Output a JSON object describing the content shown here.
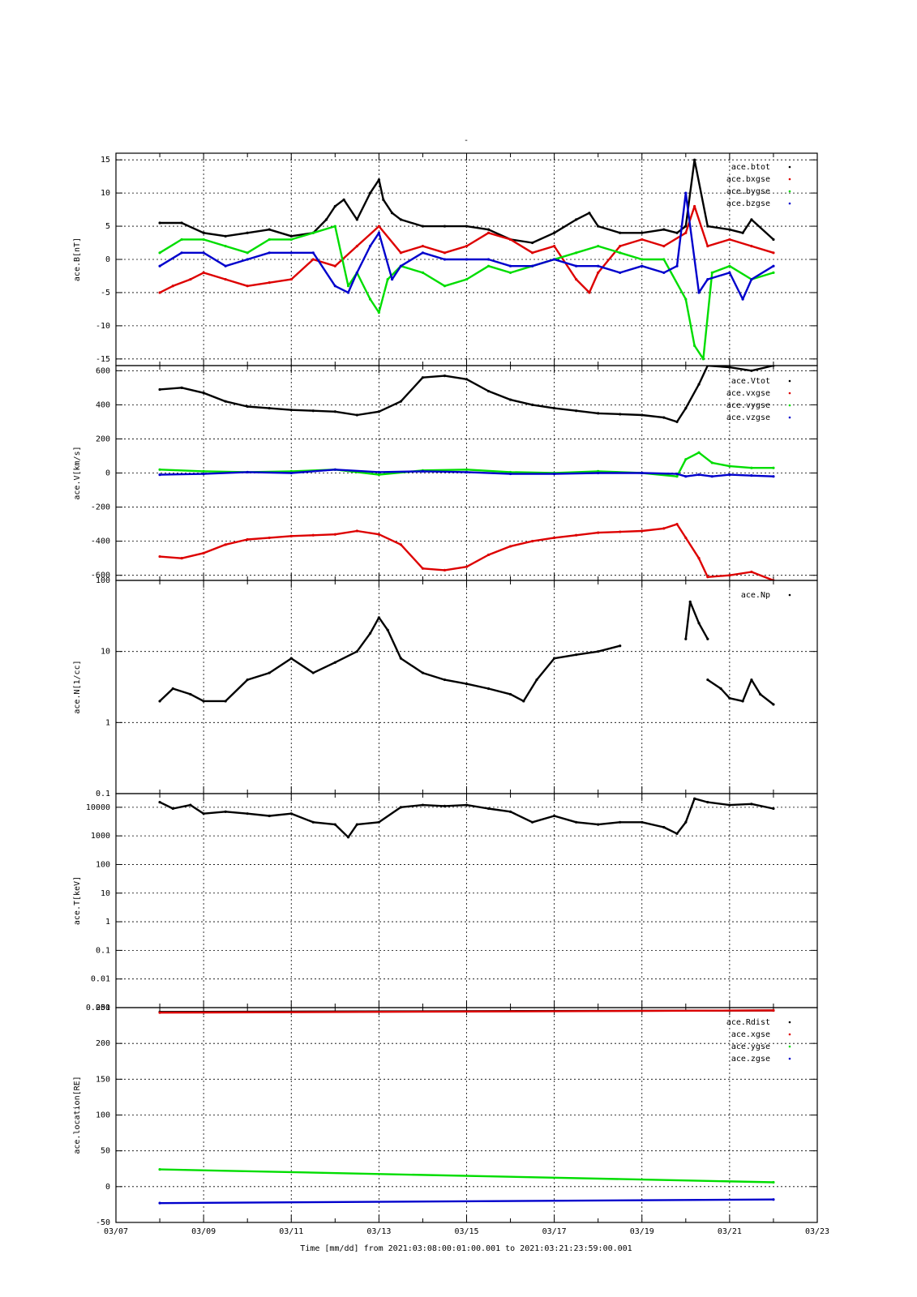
{
  "figure_title": "-",
  "xaxis": {
    "tick_labels": [
      "03/07",
      "03/09",
      "03/11",
      "03/13",
      "03/15",
      "03/17",
      "03/19",
      "03/21",
      "03/23"
    ],
    "label": "Time [mm/dd]  from 2021:03:08:00:01:00.001  to  2021:03:21:23:59:00.001"
  },
  "colors": {
    "black": "#000000",
    "red": "#dd0000",
    "green": "#00dd00",
    "blue": "#0000cc"
  },
  "chart_data": [
    {
      "type": "scatter",
      "ylabel": "ace.B[nT]",
      "ylim": [
        -16,
        16
      ],
      "yticks": [
        15,
        10,
        5,
        0,
        -5,
        -10,
        -15
      ],
      "ytick_labels": [
        "15",
        "10",
        "5",
        "0",
        "-5",
        "-10",
        "-15"
      ],
      "legend": [
        "ace.btot",
        "ace.bxgse",
        "ace.bygse",
        "ace.bzgse"
      ],
      "legend_placement": "top-right",
      "grid": true,
      "series": [
        {
          "name": "ace.btot",
          "color": "black",
          "x": [
            8,
            8.5,
            9,
            9.5,
            10,
            10.5,
            11,
            11.5,
            11.8,
            12,
            12.2,
            12.5,
            12.8,
            13,
            13.1,
            13.3,
            13.5,
            14,
            14.5,
            15,
            15.5,
            16,
            16.5,
            17,
            17.5,
            17.8,
            18,
            18.5,
            19,
            19.5,
            19.8,
            20,
            20.2,
            20.5,
            21,
            21.3,
            21.5,
            22
          ],
          "y": [
            5.5,
            5.5,
            4,
            3.5,
            4,
            4.5,
            3.5,
            4,
            6,
            8,
            9,
            6,
            10,
            12,
            9,
            7,
            6,
            5,
            5,
            5,
            4.5,
            3,
            2.5,
            4,
            6,
            7,
            5,
            4,
            4,
            4.5,
            4,
            5,
            15,
            5,
            4.5,
            4,
            6,
            3
          ]
        },
        {
          "name": "ace.bxgse",
          "color": "red",
          "x": [
            8,
            8.3,
            8.7,
            9,
            9.5,
            10,
            10.5,
            11,
            11.5,
            12,
            12.5,
            13,
            13.5,
            14,
            14.5,
            15,
            15.5,
            16,
            16.5,
            17,
            17.5,
            17.8,
            18,
            18.5,
            19,
            19.5,
            20,
            20.2,
            20.5,
            21,
            21.5,
            22
          ],
          "y": [
            -5,
            -4,
            -3,
            -2,
            -3,
            -4,
            -3.5,
            -3,
            0,
            -1,
            2,
            5,
            1,
            2,
            1,
            2,
            4,
            3,
            1,
            2,
            -3,
            -5,
            -2,
            2,
            3,
            2,
            4,
            8,
            2,
            3,
            2,
            1
          ]
        },
        {
          "name": "ace.bygse",
          "color": "green",
          "x": [
            8,
            8.5,
            9,
            9.5,
            10,
            10.5,
            11,
            11.5,
            12,
            12.3,
            12.5,
            12.8,
            13,
            13.2,
            13.5,
            14,
            14.5,
            15,
            15.5,
            16,
            16.5,
            17,
            17.5,
            18,
            18.5,
            19,
            19.5,
            20,
            20.2,
            20.4,
            20.6,
            21,
            21.5,
            22
          ],
          "y": [
            1,
            3,
            3,
            2,
            1,
            3,
            3,
            4,
            5,
            -4,
            -2,
            -6,
            -8,
            -3,
            -1,
            -2,
            -4,
            -3,
            -1,
            -2,
            -1,
            0,
            1,
            2,
            1,
            0,
            0,
            -6,
            -13,
            -15,
            -2,
            -1,
            -3,
            -2
          ]
        },
        {
          "name": "ace.bzgse",
          "color": "blue",
          "x": [
            8,
            8.5,
            9,
            9.5,
            10,
            10.5,
            11,
            11.5,
            12,
            12.3,
            12.5,
            12.8,
            13,
            13.3,
            13.5,
            14,
            14.5,
            15,
            15.5,
            16,
            16.5,
            17,
            17.5,
            18,
            18.5,
            19,
            19.5,
            19.8,
            20,
            20.3,
            20.5,
            21,
            21.3,
            21.5,
            22
          ],
          "y": [
            -1,
            1,
            1,
            -1,
            0,
            1,
            1,
            1,
            -4,
            -5,
            -2,
            2,
            4,
            -3,
            -1,
            1,
            0,
            0,
            0,
            -1,
            -1,
            0,
            -1,
            -1,
            -2,
            -1,
            -2,
            -1,
            10,
            -5,
            -3,
            -2,
            -6,
            -3,
            -1
          ]
        }
      ]
    },
    {
      "type": "scatter",
      "ylabel": "ace.V[km/s]",
      "ylim": [
        -630,
        630
      ],
      "yticks": [
        600,
        400,
        200,
        0,
        -200,
        -400,
        -600
      ],
      "ytick_labels": [
        "600",
        "400",
        "200",
        "0",
        "-200",
        "-400",
        "-600"
      ],
      "legend": [
        "ace.Vtot",
        "ace.vxgse",
        "ace.vygse",
        "ace.vzgse"
      ],
      "legend_placement": "top-right",
      "grid": true,
      "series": [
        {
          "name": "ace.Vtot",
          "color": "black",
          "x": [
            8,
            8.5,
            9,
            9.5,
            10,
            10.5,
            11,
            11.5,
            12,
            12.5,
            13,
            13.5,
            14,
            14.5,
            15,
            15.5,
            16,
            16.5,
            17,
            17.5,
            18,
            18.5,
            19,
            19.5,
            19.8,
            20,
            20.3,
            20.5,
            21,
            21.5,
            22
          ],
          "y": [
            490,
            500,
            470,
            420,
            390,
            380,
            370,
            365,
            360,
            340,
            360,
            420,
            560,
            570,
            550,
            480,
            430,
            400,
            380,
            365,
            350,
            345,
            340,
            325,
            300,
            380,
            520,
            630,
            620,
            600,
            630
          ]
        },
        {
          "name": "ace.vxgse",
          "color": "red",
          "x": [
            8,
            8.5,
            9,
            9.5,
            10,
            10.5,
            11,
            11.5,
            12,
            12.5,
            13,
            13.5,
            14,
            14.5,
            15,
            15.5,
            16,
            16.5,
            17,
            17.5,
            18,
            18.5,
            19,
            19.5,
            19.8,
            20,
            20.3,
            20.5,
            21,
            21.5,
            22
          ],
          "y": [
            -490,
            -500,
            -470,
            -420,
            -390,
            -380,
            -370,
            -365,
            -360,
            -340,
            -360,
            -420,
            -560,
            -570,
            -550,
            -480,
            -430,
            -400,
            -380,
            -365,
            -350,
            -345,
            -340,
            -325,
            -300,
            -380,
            -500,
            -610,
            -600,
            -580,
            -630
          ]
        },
        {
          "name": "ace.vygse",
          "color": "green",
          "x": [
            8,
            9,
            10,
            11,
            12,
            13,
            14,
            15,
            16,
            17,
            18,
            19,
            19.8,
            20,
            20.3,
            20.6,
            21,
            21.5,
            22
          ],
          "y": [
            20,
            10,
            5,
            10,
            20,
            -10,
            15,
            20,
            5,
            0,
            10,
            0,
            -20,
            80,
            120,
            60,
            40,
            30,
            30
          ]
        },
        {
          "name": "ace.vzgse",
          "color": "blue",
          "x": [
            8,
            9,
            10,
            11,
            12,
            13,
            14,
            15,
            16,
            17,
            18,
            19,
            19.8,
            20,
            20.3,
            20.6,
            21,
            21.5,
            22
          ],
          "y": [
            -10,
            -5,
            5,
            0,
            20,
            5,
            10,
            5,
            -5,
            -5,
            0,
            0,
            -5,
            -20,
            -10,
            -20,
            -10,
            -15,
            -20
          ]
        }
      ]
    },
    {
      "type": "scatter",
      "ylabel": "ace.N[1/cc]",
      "yscale": "log",
      "ylim": [
        0.1,
        100
      ],
      "yticks": [
        100,
        10,
        1,
        0.1
      ],
      "ytick_labels": [
        "100",
        "10",
        "1",
        "0.1"
      ],
      "legend": [
        "ace.Np"
      ],
      "legend_placement": "top-right",
      "grid": true,
      "series": [
        {
          "name": "ace.Np",
          "color": "black",
          "segments": [
            {
              "x": [
                8,
                8.3,
                8.7,
                9,
                9.5,
                10,
                10.5,
                11,
                11.5,
                12,
                12.5,
                12.8,
                13,
                13.2,
                13.5,
                14,
                14.5,
                15,
                15.5,
                16,
                16.3,
                16.6,
                17,
                17.5,
                18,
                18.5
              ],
              "y": [
                2,
                3,
                2.5,
                2,
                2,
                4,
                5,
                8,
                5,
                7,
                10,
                18,
                30,
                20,
                8,
                5,
                4,
                3.5,
                3,
                2.5,
                2,
                4,
                8,
                9,
                10,
                12
              ]
            },
            {
              "x": [
                20,
                20.1,
                20.3,
                20.5
              ],
              "y": [
                15,
                50,
                25,
                15
              ]
            },
            {
              "x": [
                20.5,
                20.8,
                21,
                21.3,
                21.5,
                21.7,
                22
              ],
              "y": [
                4,
                3,
                2.2,
                2,
                4,
                2.5,
                1.8
              ]
            }
          ]
        }
      ]
    },
    {
      "type": "scatter",
      "ylabel": "ace.T[keV]",
      "yscale": "log",
      "ylim": [
        0.001,
        30000
      ],
      "yticks": [
        10000,
        1000,
        100,
        10,
        1,
        0.1,
        0.01,
        0.001
      ],
      "ytick_labels": [
        "10000",
        "1000",
        "100",
        "10",
        "1",
        "0.1",
        "0.01",
        "0.001"
      ],
      "legend_placement": "top-right",
      "grid": true,
      "series": [
        {
          "color": "black",
          "x": [
            8,
            8.3,
            8.7,
            9,
            9.5,
            10,
            10.5,
            11,
            11.5,
            12,
            12.3,
            12.5,
            13,
            13.5,
            14,
            14.5,
            15,
            15.5,
            16,
            16.5,
            17,
            17.5,
            18,
            18.5,
            19,
            19.5,
            19.8,
            20,
            20.2,
            20.5,
            21,
            21.5,
            22
          ],
          "y": [
            15000,
            9000,
            12000,
            6000,
            7000,
            6000,
            5000,
            6000,
            3000,
            2500,
            900,
            2500,
            3000,
            10000,
            12000,
            11000,
            12000,
            9000,
            7000,
            3000,
            5000,
            3000,
            2500,
            3000,
            3000,
            2000,
            1200,
            3000,
            20000,
            15000,
            12000,
            13000,
            9000
          ]
        }
      ]
    },
    {
      "type": "line",
      "ylabel": "ace.location[RE]",
      "ylim": [
        -50,
        250
      ],
      "yticks": [
        250,
        200,
        150,
        100,
        50,
        0,
        -50
      ],
      "ytick_labels": [
        "250",
        "200",
        "150",
        "100",
        "50",
        "0",
        "-50"
      ],
      "legend": [
        "ace.Rdist",
        "ace.xgse",
        "ace.ygse",
        "ace.zgse"
      ],
      "legend_placement": "top-right",
      "grid": true,
      "series": [
        {
          "name": "ace.Rdist",
          "color": "black",
          "x": [
            8,
            22
          ],
          "y": [
            244,
            246
          ]
        },
        {
          "name": "ace.xgse",
          "color": "red",
          "x": [
            8,
            22
          ],
          "y": [
            243,
            246
          ]
        },
        {
          "name": "ace.ygse",
          "color": "green",
          "x": [
            8,
            22
          ],
          "y": [
            24,
            6
          ]
        },
        {
          "name": "ace.zgse",
          "color": "blue",
          "x": [
            8,
            22
          ],
          "y": [
            -23,
            -18
          ]
        }
      ]
    }
  ]
}
